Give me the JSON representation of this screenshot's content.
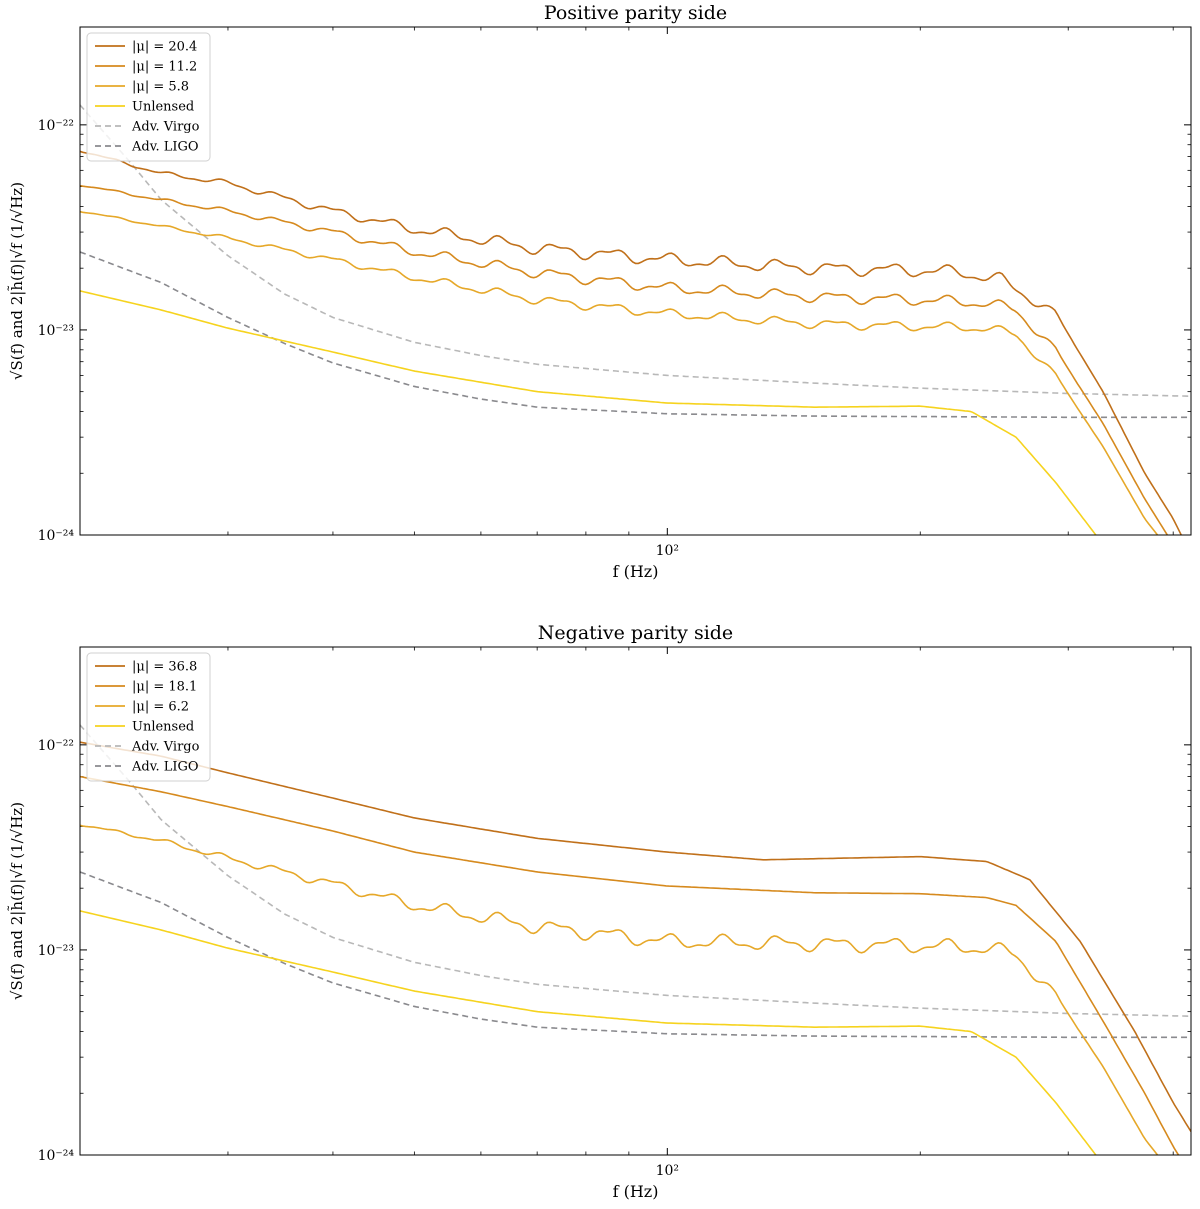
{
  "chart_data": [
    {
      "type": "line",
      "title": "Positive parity side",
      "xlabel": "f (Hz)",
      "ylabel": "√S(f) and 2|h̃(f)|√f (1/√Hz)",
      "xscale": "log",
      "yscale": "log",
      "xlim": [
        20,
        420
      ],
      "ylim": [
        1e-24,
        3e-22
      ],
      "xticks": [
        {
          "value": 100,
          "label": "10²"
        }
      ],
      "yticks": [
        {
          "value": 1e-24,
          "label": "10⁻²⁴"
        },
        {
          "value": 1e-23,
          "label": "10⁻²³"
        },
        {
          "value": 1e-22,
          "label": "10⁻²²"
        }
      ],
      "legend_position": "top-left",
      "series": [
        {
          "name": "|μ| = 20.4",
          "color": "#c0701a",
          "dash": false,
          "wiggle": 0.035,
          "points": [
            [
              20,
              7.5e-23
            ],
            [
              25,
              5.8e-23
            ],
            [
              30,
              5.2e-23
            ],
            [
              40,
              3.8e-23
            ],
            [
              50,
              3.1e-23
            ],
            [
              70,
              2.5e-23
            ],
            [
              100,
              2.2e-23
            ],
            [
              150,
              2e-23
            ],
            [
              200,
              1.95e-23
            ],
            [
              225,
              1.9e-23
            ],
            [
              250,
              1.75e-23
            ],
            [
              290,
              1.2e-23
            ],
            [
              330,
              5e-24
            ],
            [
              370,
              2e-24
            ],
            [
              400,
              1.2e-24
            ],
            [
              420,
              8e-25
            ]
          ]
        },
        {
          "name": "|μ| = 11.2",
          "color": "#d68a1e",
          "dash": false,
          "wiggle": 0.03,
          "points": [
            [
              20,
              5.1e-23
            ],
            [
              25,
              4.3e-23
            ],
            [
              30,
              3.8e-23
            ],
            [
              40,
              3e-23
            ],
            [
              50,
              2.4e-23
            ],
            [
              70,
              1.9e-23
            ],
            [
              100,
              1.6e-23
            ],
            [
              150,
              1.45e-23
            ],
            [
              200,
              1.4e-23
            ],
            [
              240,
              1.35e-23
            ],
            [
              260,
              1.25e-23
            ],
            [
              290,
              8e-24
            ],
            [
              330,
              3.5e-24
            ],
            [
              370,
              1.5e-24
            ],
            [
              400,
              9e-25
            ]
          ]
        },
        {
          "name": "|μ| = 5.8",
          "color": "#e6a829",
          "dash": false,
          "wiggle": 0.025,
          "points": [
            [
              20,
              3.8e-23
            ],
            [
              25,
              3.2e-23
            ],
            [
              30,
              2.8e-23
            ],
            [
              40,
              2.2e-23
            ],
            [
              50,
              1.8e-23
            ],
            [
              70,
              1.4e-23
            ],
            [
              100,
              1.2e-23
            ],
            [
              150,
              1.07e-23
            ],
            [
              200,
              1.04e-23
            ],
            [
              240,
              1.02e-23
            ],
            [
              260,
              9.5e-24
            ],
            [
              290,
              6e-24
            ],
            [
              330,
              2.7e-24
            ],
            [
              370,
              1.2e-24
            ],
            [
              400,
              8e-25
            ]
          ]
        },
        {
          "name": "Unlensed",
          "color": "#f6d31e",
          "dash": false,
          "wiggle": 0,
          "points": [
            [
              20,
              1.55e-23
            ],
            [
              25,
              1.25e-23
            ],
            [
              30,
              1.02e-23
            ],
            [
              40,
              7.8e-24
            ],
            [
              50,
              6.3e-24
            ],
            [
              70,
              5e-24
            ],
            [
              100,
              4.4e-24
            ],
            [
              150,
              4.2e-24
            ],
            [
              200,
              4.25e-24
            ],
            [
              230,
              4e-24
            ],
            [
              260,
              3e-24
            ],
            [
              290,
              1.8e-24
            ],
            [
              330,
              9e-25
            ]
          ]
        },
        {
          "name": "Adv. Virgo",
          "color": "#b8b8b8",
          "dash": true,
          "wiggle": 0,
          "points": [
            [
              20,
              1.25e-22
            ],
            [
              23,
              6.5e-23
            ],
            [
              25,
              4.3e-23
            ],
            [
              30,
              2.3e-23
            ],
            [
              35,
              1.5e-23
            ],
            [
              40,
              1.15e-23
            ],
            [
              50,
              8.7e-24
            ],
            [
              60,
              7.5e-24
            ],
            [
              70,
              6.8e-24
            ],
            [
              100,
              6e-24
            ],
            [
              150,
              5.5e-24
            ],
            [
              200,
              5.2e-24
            ],
            [
              300,
              4.9e-24
            ],
            [
              420,
              4.75e-24
            ]
          ]
        },
        {
          "name": "Adv. LIGO",
          "color": "#8a8a8e",
          "dash": true,
          "wiggle": 0,
          "points": [
            [
              20,
              2.4e-23
            ],
            [
              25,
              1.7e-23
            ],
            [
              30,
              1.15e-23
            ],
            [
              35,
              8.6e-24
            ],
            [
              40,
              6.9e-24
            ],
            [
              50,
              5.3e-24
            ],
            [
              60,
              4.6e-24
            ],
            [
              70,
              4.2e-24
            ],
            [
              100,
              3.9e-24
            ],
            [
              150,
              3.8e-24
            ],
            [
              200,
              3.78e-24
            ],
            [
              300,
              3.75e-24
            ],
            [
              420,
              3.75e-24
            ]
          ]
        }
      ]
    },
    {
      "type": "line",
      "title": "Negative parity side",
      "xlabel": "f (Hz)",
      "ylabel": "√S(f) and 2|h̃(f)|√f (1/√Hz)",
      "xscale": "log",
      "yscale": "log",
      "xlim": [
        20,
        420
      ],
      "ylim": [
        1e-24,
        3e-22
      ],
      "xticks": [
        {
          "value": 100,
          "label": "10²"
        }
      ],
      "yticks": [
        {
          "value": 1e-24,
          "label": "10⁻²⁴"
        },
        {
          "value": 1e-23,
          "label": "10⁻²³"
        },
        {
          "value": 1e-22,
          "label": "10⁻²²"
        }
      ],
      "legend_position": "top-left",
      "series": [
        {
          "name": "|μ| = 36.8",
          "color": "#c0701a",
          "dash": false,
          "wiggle": 0,
          "points": [
            [
              20,
              1.03e-22
            ],
            [
              25,
              8.8e-23
            ],
            [
              30,
              7.3e-23
            ],
            [
              40,
              5.5e-23
            ],
            [
              50,
              4.4e-23
            ],
            [
              70,
              3.5e-23
            ],
            [
              100,
              3e-23
            ],
            [
              130,
              2.75e-23
            ],
            [
              160,
              2.8e-23
            ],
            [
              200,
              2.85e-23
            ],
            [
              240,
              2.7e-23
            ],
            [
              270,
              2.2e-23
            ],
            [
              310,
              1.1e-23
            ],
            [
              360,
              4e-24
            ],
            [
              400,
              1.8e-24
            ],
            [
              420,
              1.3e-24
            ]
          ]
        },
        {
          "name": "|μ| = 18.1",
          "color": "#d68a1e",
          "dash": false,
          "wiggle": 0,
          "points": [
            [
              20,
              7e-23
            ],
            [
              25,
              5.9e-23
            ],
            [
              30,
              5e-23
            ],
            [
              40,
              3.8e-23
            ],
            [
              50,
              3e-23
            ],
            [
              70,
              2.4e-23
            ],
            [
              100,
              2.05e-23
            ],
            [
              150,
              1.9e-23
            ],
            [
              200,
              1.88e-23
            ],
            [
              240,
              1.8e-23
            ],
            [
              260,
              1.65e-23
            ],
            [
              290,
              1.1e-23
            ],
            [
              330,
              4.5e-24
            ],
            [
              370,
              2e-24
            ],
            [
              400,
              1.1e-24
            ],
            [
              420,
              8e-25
            ]
          ]
        },
        {
          "name": "|μ| = 6.2",
          "color": "#e6a829",
          "dash": false,
          "wiggle": 0.04,
          "points": [
            [
              20,
              4.1e-23
            ],
            [
              25,
              3.4e-23
            ],
            [
              30,
              2.8e-23
            ],
            [
              40,
              2.1e-23
            ],
            [
              50,
              1.65e-23
            ],
            [
              70,
              1.3e-23
            ],
            [
              100,
              1.1e-23
            ],
            [
              150,
              1.07e-23
            ],
            [
              200,
              1.05e-23
            ],
            [
              240,
              1.02e-23
            ],
            [
              260,
              9.5e-24
            ],
            [
              290,
              6e-24
            ],
            [
              330,
              2.7e-24
            ],
            [
              370,
              1.2e-24
            ],
            [
              400,
              8e-25
            ]
          ]
        },
        {
          "name": "Unlensed",
          "color": "#f6d31e",
          "dash": false,
          "wiggle": 0,
          "points": [
            [
              20,
              1.55e-23
            ],
            [
              25,
              1.25e-23
            ],
            [
              30,
              1.02e-23
            ],
            [
              40,
              7.8e-24
            ],
            [
              50,
              6.3e-24
            ],
            [
              70,
              5e-24
            ],
            [
              100,
              4.4e-24
            ],
            [
              150,
              4.2e-24
            ],
            [
              200,
              4.25e-24
            ],
            [
              230,
              4e-24
            ],
            [
              260,
              3e-24
            ],
            [
              290,
              1.8e-24
            ],
            [
              330,
              9e-25
            ]
          ]
        },
        {
          "name": "Adv. Virgo",
          "color": "#b8b8b8",
          "dash": true,
          "wiggle": 0,
          "points": [
            [
              20,
              1.25e-22
            ],
            [
              23,
              6.5e-23
            ],
            [
              25,
              4.3e-23
            ],
            [
              30,
              2.3e-23
            ],
            [
              35,
              1.5e-23
            ],
            [
              40,
              1.15e-23
            ],
            [
              50,
              8.7e-24
            ],
            [
              60,
              7.5e-24
            ],
            [
              70,
              6.8e-24
            ],
            [
              100,
              6e-24
            ],
            [
              150,
              5.5e-24
            ],
            [
              200,
              5.2e-24
            ],
            [
              300,
              4.9e-24
            ],
            [
              420,
              4.75e-24
            ]
          ]
        },
        {
          "name": "Adv. LIGO",
          "color": "#8a8a8e",
          "dash": true,
          "wiggle": 0,
          "points": [
            [
              20,
              2.4e-23
            ],
            [
              25,
              1.7e-23
            ],
            [
              30,
              1.15e-23
            ],
            [
              35,
              8.6e-24
            ],
            [
              40,
              6.9e-24
            ],
            [
              50,
              5.3e-24
            ],
            [
              60,
              4.6e-24
            ],
            [
              70,
              4.2e-24
            ],
            [
              100,
              3.9e-24
            ],
            [
              150,
              3.8e-24
            ],
            [
              200,
              3.78e-24
            ],
            [
              300,
              3.75e-24
            ],
            [
              420,
              3.75e-24
            ]
          ]
        }
      ]
    }
  ]
}
